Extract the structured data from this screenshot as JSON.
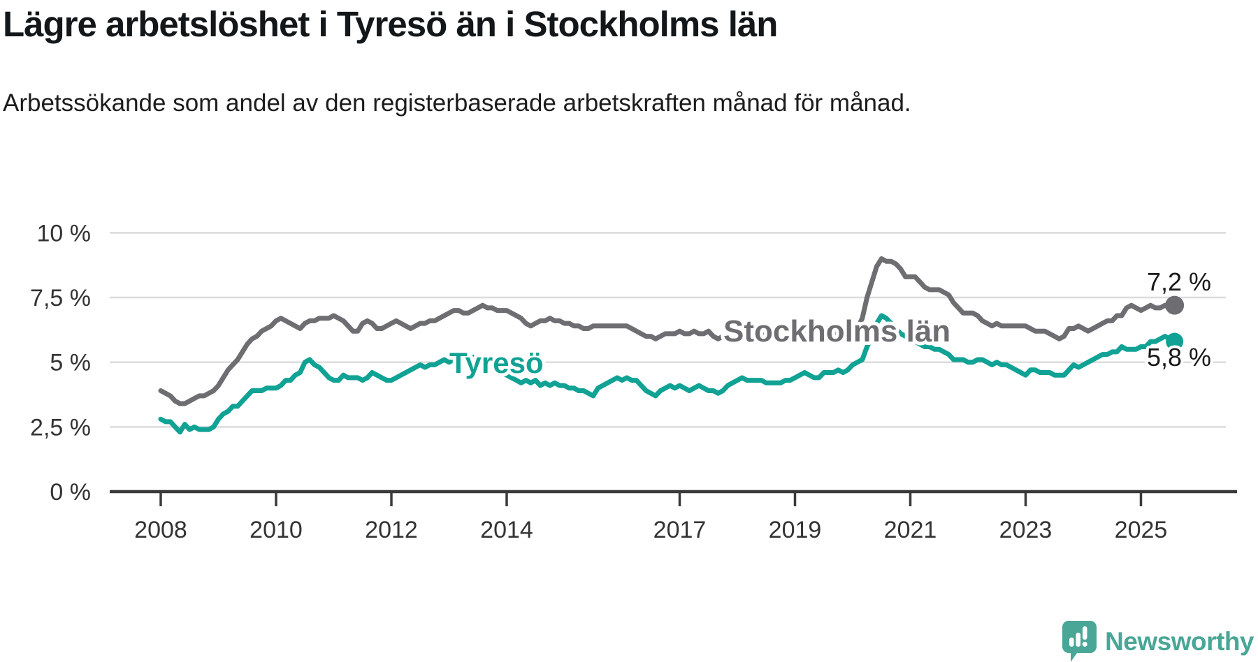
{
  "header": {
    "title": "Lägre arbetslöshet i Tyresö än i Stockholms län",
    "subtitle": "Arbetssökande som andel av den registerbaserade arbetskraften månad för månad."
  },
  "chart_data": {
    "type": "line",
    "title": "Lägre arbetslöshet i Tyresö än i Stockholms län",
    "subtitle": "Arbetssökande som andel av den registerbaserade arbetskraften månad för månad.",
    "unit": "%",
    "x_start": "2008-01",
    "x_end": "2025-08",
    "x_tick_years": [
      2008,
      2010,
      2012,
      2014,
      2017,
      2019,
      2021,
      2023,
      2025
    ],
    "ylim": [
      0,
      10
    ],
    "grid": true,
    "legend_position": "inline-labels",
    "y_ticks": [
      {
        "value": 10,
        "label": "10 %"
      },
      {
        "value": 7.5,
        "label": "7,5 %"
      },
      {
        "value": 5,
        "label": "5 %"
      },
      {
        "value": 2.5,
        "label": "2,5 %"
      },
      {
        "value": 0,
        "label": "0 %"
      }
    ],
    "series": [
      {
        "name": "Stockholms län",
        "color": "#6e6e72",
        "end_label": "7,2 %",
        "end_value": 7.2,
        "values": [
          3.9,
          3.8,
          3.7,
          3.5,
          3.4,
          3.4,
          3.5,
          3.6,
          3.7,
          3.7,
          3.8,
          3.9,
          4.1,
          4.4,
          4.7,
          4.9,
          5.1,
          5.4,
          5.7,
          5.9,
          6.0,
          6.2,
          6.3,
          6.4,
          6.6,
          6.7,
          6.6,
          6.5,
          6.4,
          6.3,
          6.5,
          6.6,
          6.6,
          6.7,
          6.7,
          6.7,
          6.8,
          6.7,
          6.6,
          6.4,
          6.2,
          6.2,
          6.5,
          6.6,
          6.5,
          6.3,
          6.3,
          6.4,
          6.5,
          6.6,
          6.5,
          6.4,
          6.3,
          6.4,
          6.5,
          6.5,
          6.6,
          6.6,
          6.7,
          6.8,
          6.9,
          7.0,
          7.0,
          6.9,
          6.9,
          7.0,
          7.1,
          7.2,
          7.1,
          7.1,
          7.0,
          7.0,
          7.0,
          6.9,
          6.8,
          6.7,
          6.5,
          6.4,
          6.5,
          6.6,
          6.6,
          6.7,
          6.6,
          6.6,
          6.5,
          6.5,
          6.4,
          6.4,
          6.3,
          6.3,
          6.4,
          6.4,
          6.4,
          6.4,
          6.4,
          6.4,
          6.4,
          6.4,
          6.3,
          6.2,
          6.1,
          6.0,
          6.0,
          5.9,
          6.0,
          6.1,
          6.1,
          6.1,
          6.2,
          6.1,
          6.1,
          6.2,
          6.1,
          6.1,
          6.2,
          6.0,
          5.9,
          6.0,
          6.1,
          6.1,
          6.1,
          6.1,
          6.1,
          6.0,
          6.0,
          6.0,
          6.1,
          6.1,
          6.0,
          6.0,
          6.0,
          6.0,
          6.1,
          6.1,
          6.1,
          6.1,
          6.1,
          6.2,
          6.2,
          6.2,
          6.1,
          6.2,
          6.2,
          6.2,
          6.3,
          6.3,
          6.7,
          7.5,
          8.1,
          8.7,
          9.0,
          8.9,
          8.9,
          8.8,
          8.6,
          8.3,
          8.3,
          8.3,
          8.1,
          7.9,
          7.8,
          7.8,
          7.8,
          7.7,
          7.6,
          7.3,
          7.1,
          6.9,
          6.9,
          6.9,
          6.8,
          6.6,
          6.5,
          6.4,
          6.5,
          6.4,
          6.4,
          6.4,
          6.4,
          6.4,
          6.4,
          6.3,
          6.2,
          6.2,
          6.2,
          6.1,
          6.0,
          5.9,
          6.0,
          6.3,
          6.3,
          6.4,
          6.3,
          6.2,
          6.3,
          6.4,
          6.5,
          6.6,
          6.6,
          6.8,
          6.8,
          7.1,
          7.2,
          7.1,
          7.0,
          7.1,
          7.2,
          7.1,
          7.1,
          7.2,
          7.1,
          7.2
        ]
      },
      {
        "name": "Tyresö",
        "color": "#10a294",
        "end_label": "5,8 %",
        "end_value": 5.8,
        "values": [
          2.8,
          2.7,
          2.7,
          2.5,
          2.3,
          2.6,
          2.4,
          2.5,
          2.4,
          2.4,
          2.4,
          2.5,
          2.8,
          3.0,
          3.1,
          3.3,
          3.3,
          3.5,
          3.7,
          3.9,
          3.9,
          3.9,
          4.0,
          4.0,
          4.0,
          4.1,
          4.3,
          4.3,
          4.5,
          4.6,
          5.0,
          5.1,
          4.9,
          4.8,
          4.6,
          4.4,
          4.3,
          4.3,
          4.5,
          4.4,
          4.4,
          4.4,
          4.3,
          4.4,
          4.6,
          4.5,
          4.4,
          4.3,
          4.3,
          4.4,
          4.5,
          4.6,
          4.7,
          4.8,
          4.9,
          4.8,
          4.9,
          4.9,
          5.0,
          5.1,
          5.0,
          5.1,
          5.2,
          5.1,
          5.1,
          5.2,
          5.1,
          5.0,
          4.9,
          4.8,
          4.7,
          4.6,
          4.5,
          4.4,
          4.3,
          4.2,
          4.3,
          4.2,
          4.3,
          4.1,
          4.2,
          4.1,
          4.2,
          4.1,
          4.1,
          4.0,
          4.0,
          3.9,
          3.9,
          3.8,
          3.7,
          4.0,
          4.1,
          4.2,
          4.3,
          4.4,
          4.3,
          4.4,
          4.3,
          4.3,
          4.1,
          3.9,
          3.8,
          3.7,
          3.9,
          4.0,
          4.1,
          4.0,
          4.1,
          4.0,
          3.9,
          4.0,
          4.1,
          4.0,
          3.9,
          3.9,
          3.8,
          3.9,
          4.1,
          4.2,
          4.3,
          4.4,
          4.3,
          4.3,
          4.3,
          4.3,
          4.2,
          4.2,
          4.2,
          4.2,
          4.3,
          4.3,
          4.4,
          4.5,
          4.6,
          4.5,
          4.4,
          4.4,
          4.6,
          4.6,
          4.6,
          4.7,
          4.6,
          4.7,
          4.9,
          5.0,
          5.1,
          5.6,
          6.0,
          6.5,
          6.8,
          6.7,
          6.5,
          6.3,
          6.1,
          6.0,
          5.9,
          5.8,
          5.7,
          5.6,
          5.6,
          5.5,
          5.5,
          5.4,
          5.3,
          5.1,
          5.1,
          5.1,
          5.0,
          5.0,
          5.1,
          5.1,
          5.0,
          4.9,
          5.0,
          4.9,
          4.9,
          4.8,
          4.7,
          4.6,
          4.5,
          4.7,
          4.7,
          4.6,
          4.6,
          4.6,
          4.5,
          4.5,
          4.5,
          4.7,
          4.9,
          4.8,
          4.9,
          5.0,
          5.1,
          5.2,
          5.3,
          5.3,
          5.4,
          5.4,
          5.6,
          5.5,
          5.5,
          5.5,
          5.6,
          5.6,
          5.8,
          5.8,
          5.9,
          6.0,
          5.9,
          5.8
        ]
      }
    ]
  },
  "branding": {
    "logo_text": "Newsworthy",
    "logo_color": "#4aa696"
  },
  "colors": {
    "background": "#ffffff",
    "gridline": "#dcdcdc",
    "axis": "#3a3a3a",
    "axis_label": "#333333",
    "value_label": "#191919",
    "series_stockholm": "#6e6e72",
    "series_tyreso": "#10a294"
  }
}
